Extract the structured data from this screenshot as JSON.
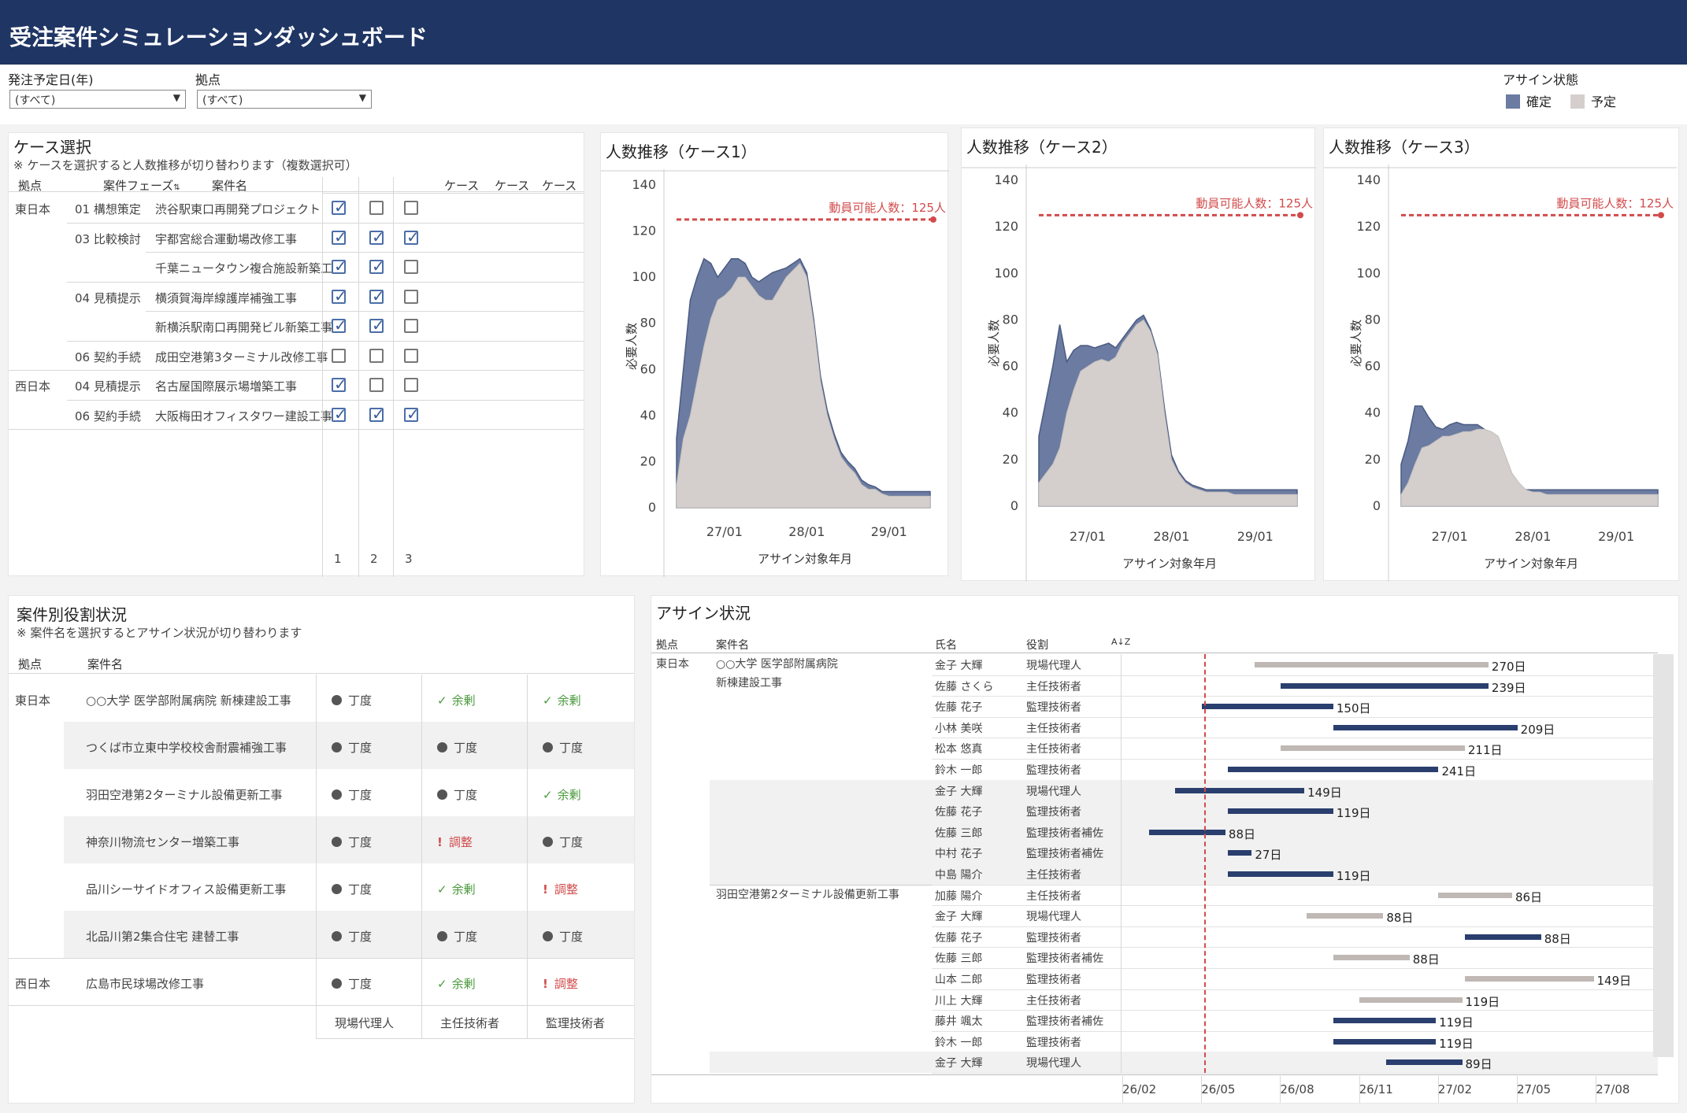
{
  "header": {
    "title": "受注案件シミュレーションダッシュボード"
  },
  "filters": {
    "year_label": "発注予定日(年)",
    "year_value": "(すべて)",
    "base_label": "拠点",
    "base_value": "(すべて)"
  },
  "legend": {
    "title": "アサイン状態",
    "confirmed": "確定",
    "planned": "予定",
    "confirmed_color": "#6b7ba1",
    "planned_color": "#d4cfcd"
  },
  "case_select": {
    "title": "ケース選択",
    "note": "※ ケースを選択すると人数推移が切り替わります（複数選択可）",
    "headers": {
      "base": "拠点",
      "phase": "案件フェーズ",
      "name": "案件名",
      "case": "ケース"
    },
    "footer": [
      "1",
      "2",
      "3"
    ],
    "rows": [
      {
        "base": "東日本",
        "phase": "01 構想策定",
        "name": "渋谷駅東口再開発プロジェクト",
        "c": [
          true,
          false,
          false
        ]
      },
      {
        "base": "",
        "phase": "03 比較検討",
        "name": "宇都宮総合運動場改修工事",
        "c": [
          true,
          true,
          true
        ]
      },
      {
        "base": "",
        "phase": "",
        "name": "千葉ニュータウン複合施設新築工事",
        "c": [
          true,
          true,
          false
        ]
      },
      {
        "base": "",
        "phase": "04 見積提示",
        "name": "横須賀海岸線護岸補強工事",
        "c": [
          true,
          true,
          false
        ]
      },
      {
        "base": "",
        "phase": "",
        "name": "新横浜駅南口再開発ビル新築工事",
        "c": [
          true,
          true,
          false
        ]
      },
      {
        "base": "",
        "phase": "06 契約手続",
        "name": "成田空港第3ターミナル改修工事",
        "c": [
          false,
          false,
          false
        ]
      },
      {
        "base": "西日本",
        "phase": "04 見積提示",
        "name": "名古屋国際展示場増築工事",
        "c": [
          true,
          false,
          false
        ]
      },
      {
        "base": "",
        "phase": "06 契約手続",
        "name": "大阪梅田オフィスタワー建設工事",
        "c": [
          true,
          true,
          true
        ]
      }
    ]
  },
  "headcount_charts": {
    "ylabel": "必要人数",
    "xlabel": "アサイン対象年月",
    "capacity_label": "動員可能人数：125人",
    "capacity": 125,
    "xticks": [
      "27/01",
      "28/01",
      "29/01"
    ]
  },
  "chart_data": [
    {
      "type": "area",
      "title": "人数推移（ケース1）",
      "xlabel": "アサイン対象年月",
      "ylabel": "必要人数",
      "ylim": [
        0,
        140
      ],
      "yticks": [
        0,
        20,
        40,
        60,
        80,
        100,
        120,
        140
      ],
      "x": [
        "26/06",
        "26/07",
        "26/08",
        "26/09",
        "26/10",
        "26/11",
        "26/12",
        "27/01",
        "27/02",
        "27/03",
        "27/04",
        "27/05",
        "27/06",
        "27/07",
        "27/08",
        "27/09",
        "27/10",
        "27/11",
        "27/12",
        "28/01",
        "28/02",
        "28/03",
        "28/04",
        "28/05",
        "28/06",
        "28/07",
        "28/08",
        "28/09",
        "28/10",
        "28/11",
        "28/12",
        "29/01",
        "29/02",
        "29/03",
        "29/04",
        "29/05",
        "29/06",
        "29/07"
      ],
      "series": [
        {
          "name": "確定",
          "values": [
            10,
            30,
            40,
            55,
            70,
            82,
            90,
            92,
            95,
            100,
            100,
            96,
            92,
            90,
            90,
            95,
            100,
            103,
            106,
            100,
            80,
            55,
            40,
            30,
            22,
            18,
            15,
            10,
            8,
            8,
            6,
            5,
            5,
            5,
            5,
            5,
            5,
            5
          ]
        },
        {
          "name": "予定",
          "values": [
            30,
            60,
            90,
            100,
            108,
            106,
            100,
            104,
            108,
            108,
            106,
            100,
            98,
            100,
            102,
            103,
            104,
            106,
            108,
            102,
            82,
            57,
            42,
            32,
            24,
            20,
            17,
            12,
            10,
            9,
            7,
            7,
            7,
            7,
            7,
            7,
            7,
            7
          ]
        }
      ],
      "capacity": 125
    },
    {
      "type": "area",
      "title": "人数推移（ケース2）",
      "xlabel": "アサイン対象年月",
      "ylabel": "必要人数",
      "ylim": [
        0,
        140
      ],
      "yticks": [
        0,
        20,
        40,
        60,
        80,
        100,
        120,
        140
      ],
      "x": [
        "26/06",
        "26/07",
        "26/08",
        "26/09",
        "26/10",
        "26/11",
        "26/12",
        "27/01",
        "27/02",
        "27/03",
        "27/04",
        "27/05",
        "27/06",
        "27/07",
        "27/08",
        "27/09",
        "27/10",
        "27/11",
        "27/12",
        "28/01",
        "28/02",
        "28/03",
        "28/04",
        "28/05",
        "28/06",
        "28/07",
        "28/08",
        "28/09",
        "28/10",
        "28/11",
        "28/12",
        "29/01",
        "29/02",
        "29/03",
        "29/04",
        "29/05",
        "29/06",
        "29/07"
      ],
      "series": [
        {
          "name": "確定",
          "values": [
            10,
            14,
            18,
            25,
            40,
            50,
            58,
            60,
            62,
            63,
            62,
            64,
            70,
            74,
            78,
            80,
            75,
            65,
            40,
            20,
            14,
            10,
            8,
            7,
            6,
            6,
            6,
            6,
            5,
            5,
            5,
            5,
            5,
            5,
            5,
            5,
            5,
            5
          ]
        },
        {
          "name": "予定",
          "values": [
            30,
            45,
            60,
            78,
            62,
            67,
            69,
            69,
            68,
            69,
            70,
            68,
            72,
            76,
            80,
            82,
            76,
            66,
            42,
            22,
            15,
            11,
            9,
            8,
            7,
            7,
            7,
            7,
            7,
            7,
            7,
            7,
            7,
            7,
            7,
            7,
            7,
            7
          ]
        }
      ],
      "capacity": 125
    },
    {
      "type": "area",
      "title": "人数推移（ケース3）",
      "xlabel": "アサイン対象年月",
      "ylabel": "必要人数",
      "ylim": [
        0,
        140
      ],
      "yticks": [
        0,
        20,
        40,
        60,
        80,
        100,
        120,
        140
      ],
      "x": [
        "26/06",
        "26/07",
        "26/08",
        "26/09",
        "26/10",
        "26/11",
        "26/12",
        "27/01",
        "27/02",
        "27/03",
        "27/04",
        "27/05",
        "27/06",
        "27/07",
        "27/08",
        "27/09",
        "27/10",
        "27/11",
        "27/12",
        "28/01",
        "28/02",
        "28/03",
        "28/04",
        "28/05",
        "28/06",
        "28/07",
        "28/08",
        "28/09",
        "28/10",
        "28/11",
        "28/12",
        "29/01",
        "29/02",
        "29/03",
        "29/04",
        "29/05",
        "29/06",
        "29/07"
      ],
      "series": [
        {
          "name": "確定",
          "values": [
            5,
            10,
            18,
            25,
            26,
            28,
            30,
            30,
            31,
            32,
            32,
            33,
            33,
            32,
            30,
            22,
            14,
            10,
            7,
            6,
            6,
            5,
            5,
            5,
            5,
            5,
            5,
            5,
            5,
            5,
            5,
            5,
            5,
            5,
            5,
            5,
            5,
            5
          ]
        },
        {
          "name": "予定",
          "values": [
            18,
            28,
            43,
            43,
            38,
            34,
            33,
            35,
            36,
            35,
            35,
            35,
            33,
            31,
            23,
            15,
            11,
            8,
            7,
            7,
            7,
            7,
            7,
            7,
            7,
            7,
            7,
            7,
            7,
            7,
            7,
            7,
            7,
            7,
            7,
            7,
            7,
            7
          ]
        }
      ],
      "capacity": 125
    }
  ],
  "roles": {
    "title": "案件別役割状況",
    "note": "※ 案件名を選択するとアサイン状況が切り替わります",
    "headers": {
      "base": "拠点",
      "name": "案件名"
    },
    "footer": [
      "現場代理人",
      "主任技術者",
      "監理技術者"
    ],
    "rows": [
      {
        "base": "東日本",
        "name": "○○大学 医学部附属病院 新棟建設工事",
        "s": [
          "丁度",
          "余剰",
          "余剰"
        ]
      },
      {
        "base": "",
        "name": "つくば市立東中学校校舎耐震補強工事",
        "s": [
          "丁度",
          "丁度",
          "丁度"
        ]
      },
      {
        "base": "",
        "name": "羽田空港第2ターミナル設備更新工事",
        "s": [
          "丁度",
          "丁度",
          "余剰"
        ]
      },
      {
        "base": "",
        "name": "神奈川物流センター増築工事",
        "s": [
          "丁度",
          "調整",
          "丁度"
        ]
      },
      {
        "base": "",
        "name": "品川シーサイドオフィス設備更新工事",
        "s": [
          "丁度",
          "余剰",
          "調整"
        ]
      },
      {
        "base": "",
        "name": "北品川第2集合住宅 建替工事",
        "s": [
          "丁度",
          "丁度",
          "丁度"
        ]
      },
      {
        "base": "西日本",
        "name": "広島市民球場改修工事",
        "s": [
          "丁度",
          "余剰",
          "調整"
        ]
      }
    ]
  },
  "assign": {
    "title": "アサイン状況",
    "headers": {
      "base": "拠点",
      "project": "案件名",
      "person": "氏名",
      "role": "役割",
      "sort": "A↓Z"
    },
    "base": "東日本",
    "xticks": [
      "26/02",
      "26/05",
      "26/08",
      "26/11",
      "27/02",
      "27/05",
      "27/08"
    ],
    "projects": [
      {
        "name": "○○大学 医学部附属病院",
        "name2": "新棟建設工事",
        "start": 0
      },
      {
        "name": "つくば市立東中学校校舎耐震補強工事",
        "name2": "",
        "start": 6
      },
      {
        "name": "羽田空港第2ターミナル設備更新工事",
        "name2": "",
        "start": 11
      },
      {
        "name": "神奈川物流センター増築工事",
        "name2": "",
        "start": 19
      }
    ],
    "rows": [
      {
        "person": "金子 大輝",
        "role": "現場代理人",
        "status": "予定",
        "start": "26/06",
        "days": "270日",
        "s": 4.9,
        "e": 13.8
      },
      {
        "person": "佐藤 さくら",
        "role": "主任技術者",
        "status": "確定",
        "start": "26/07",
        "days": "239日",
        "s": 5.9,
        "e": 13.8
      },
      {
        "person": "佐藤 花子",
        "role": "監理技術者",
        "status": "確定",
        "start": "26/04",
        "days": "150日",
        "s": 2.9,
        "e": 7.9
      },
      {
        "person": "小林 美咲",
        "role": "主任技術者",
        "status": "確定",
        "start": "26/08",
        "days": "209日",
        "s": 7.9,
        "e": 14.9
      },
      {
        "person": "松本 悠真",
        "role": "主任技術者",
        "status": "予定",
        "start": "26/07",
        "days": "211日",
        "s": 5.9,
        "e": 12.9
      },
      {
        "person": "鈴木 一郎",
        "role": "監理技術者",
        "status": "確定",
        "start": "26/05",
        "days": "241日",
        "s": 3.9,
        "e": 11.9
      },
      {
        "person": "金子 大輝",
        "role": "現場代理人",
        "status": "確定",
        "start": "26/03",
        "days": "149日",
        "s": 1.9,
        "e": 6.8
      },
      {
        "person": "佐藤 花子",
        "role": "監理技術者",
        "status": "確定",
        "start": "26/05",
        "days": "119日",
        "s": 3.9,
        "e": 7.9
      },
      {
        "person": "佐藤 三郎",
        "role": "監理技術者補佐",
        "status": "確定",
        "start": "26/02",
        "days": "88日",
        "s": 0.9,
        "e": 3.8
      },
      {
        "person": "中村 花子",
        "role": "監理技術者補佐",
        "status": "確定",
        "start": "26/05",
        "days": "27日",
        "s": 3.9,
        "e": 4.8
      },
      {
        "person": "中島 陽介",
        "role": "主任技術者",
        "status": "確定",
        "start": "26/05",
        "days": "119日",
        "s": 3.9,
        "e": 7.9
      },
      {
        "person": "加藤 陽介",
        "role": "主任技術者",
        "status": "予定",
        "start": "27/01",
        "days": "86日",
        "s": 11.9,
        "e": 14.7
      },
      {
        "person": "金子 大輝",
        "role": "現場代理人",
        "status": "予定",
        "start": "26/08",
        "days": "88日",
        "s": 6.9,
        "e": 9.8
      },
      {
        "person": "佐藤 花子",
        "role": "監理技術者",
        "status": "確定",
        "start": "27/02",
        "days": "88日",
        "s": 12.9,
        "e": 15.8
      },
      {
        "person": "佐藤 三郎",
        "role": "監理技術者補佐",
        "status": "予定",
        "start": "26/08",
        "days": "88日",
        "s": 7.9,
        "e": 10.8
      },
      {
        "person": "山本 二郎",
        "role": "監理技術者",
        "status": "予定",
        "start": "27/02",
        "days": "149日",
        "s": 12.9,
        "e": 17.8
      },
      {
        "person": "川上 大輝",
        "role": "主任技術者",
        "status": "予定",
        "start": "26/09",
        "days": "119日",
        "s": 8.9,
        "e": 12.8
      },
      {
        "person": "藤井 颯太",
        "role": "監理技術者補佐",
        "status": "確定",
        "start": "26/08",
        "days": "119日",
        "s": 7.9,
        "e": 11.8
      },
      {
        "person": "鈴木 一郎",
        "role": "監理技術者",
        "status": "確定",
        "start": "26/08",
        "days": "119日",
        "s": 7.9,
        "e": 11.8
      },
      {
        "person": "金子 大輝",
        "role": "現場代理人",
        "status": "確定",
        "start": "26/10",
        "days": "89日",
        "s": 9.9,
        "e": 12.8
      }
    ]
  }
}
